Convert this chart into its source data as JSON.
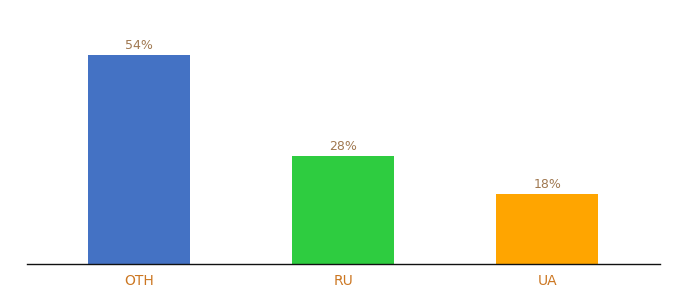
{
  "categories": [
    "OTH",
    "RU",
    "UA"
  ],
  "values": [
    54,
    28,
    18
  ],
  "bar_colors": [
    "#4472C4",
    "#2ECC40",
    "#FFA500"
  ],
  "labels": [
    "54%",
    "28%",
    "18%"
  ],
  "ylim": [
    0,
    62
  ],
  "background_color": "#ffffff",
  "label_color": "#a07850",
  "tick_color": "#cc7722",
  "bar_width": 0.5,
  "figsize": [
    6.8,
    3.0
  ],
  "dpi": 100
}
